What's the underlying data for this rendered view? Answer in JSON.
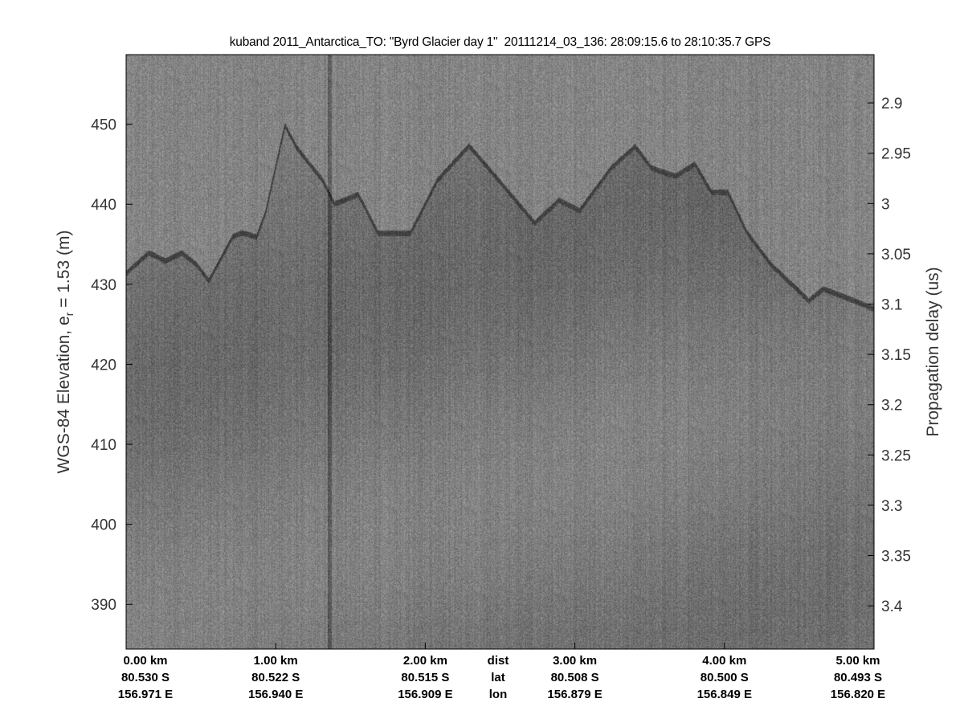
{
  "chart_data": {
    "type": "heatmap",
    "title": "kuband 2011_Antarctica_TO: \"Byrd Glacier day 1\"  20111214_03_136: 28:09:15.6 to 28:10:35.7 GPS",
    "ylabel_parts": [
      "WGS-84 Elevation, e",
      "r",
      " = 1.53 (m)"
    ],
    "y2label": "Propagation delay (us)",
    "colormap": "gray",
    "grid": false,
    "xlim": [
      0,
      5.0
    ],
    "ylim": [
      384.4,
      458.7
    ],
    "y2lim": [
      2.852,
      3.443
    ],
    "yticks": [
      390,
      400,
      410,
      420,
      430,
      440,
      450
    ],
    "y2ticks": [
      "2.9",
      "2.95",
      "3",
      "3.05",
      "3.1",
      "3.15",
      "3.2",
      "3.25",
      "3.3",
      "3.35",
      "3.4"
    ],
    "x_columns": [
      {
        "dist_km": 0.0,
        "dist": "0.00 km",
        "lat": "80.530 S",
        "lon": "156.971 E"
      },
      {
        "dist_km": 1.0,
        "dist": "1.00 km",
        "lat": "80.522 S",
        "lon": "156.940 E"
      },
      {
        "dist_km": 2.0,
        "dist": "2.00 km",
        "lat": "80.515 S",
        "lon": "156.909 E"
      },
      {
        "dist_km": 3.0,
        "dist": "3.00 km",
        "lat": "80.508 S",
        "lon": "156.879 E"
      },
      {
        "dist_km": 4.0,
        "dist": "4.00 km",
        "lat": "80.500 S",
        "lon": "156.849 E"
      },
      {
        "dist_km": 5.0,
        "dist": "5.00 km",
        "lat": "80.493 S",
        "lon": "156.820 E"
      }
    ],
    "row_headers": {
      "dist": "dist",
      "lat": "lat",
      "lon": "lon"
    },
    "surface_elevation": {
      "dist_km": [
        0.0,
        0.15,
        0.26,
        0.37,
        0.47,
        0.55,
        0.71,
        0.77,
        0.87,
        0.93,
        1.06,
        1.14,
        1.31,
        1.39,
        1.55,
        1.68,
        1.9,
        2.08,
        2.29,
        2.51,
        2.73,
        2.89,
        3.03,
        3.24,
        3.4,
        3.51,
        3.67,
        3.8,
        3.91,
        4.02,
        4.15,
        4.31,
        4.48,
        4.56,
        4.66,
        4.8,
        5.0
      ],
      "elev_m": [
        431.4,
        433.9,
        432.9,
        433.9,
        432.4,
        430.4,
        435.9,
        436.4,
        435.9,
        438.9,
        449.8,
        447.0,
        443.0,
        440.0,
        441.2,
        436.4,
        436.4,
        443.0,
        447.3,
        442.5,
        437.6,
        440.5,
        439.2,
        444.5,
        447.2,
        444.5,
        443.5,
        445.0,
        441.5,
        441.5,
        436.4,
        432.4,
        429.4,
        427.9,
        429.4,
        428.4,
        426.9
      ]
    },
    "colors": {
      "background": "#808080",
      "surface": "#3a3a3a"
    }
  }
}
